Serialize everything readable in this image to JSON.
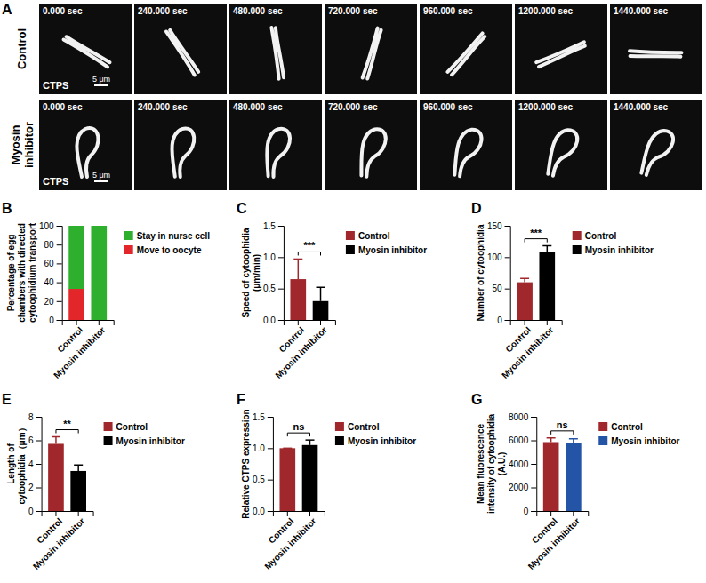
{
  "image_panel": {
    "panel_label": "A",
    "times": [
      "0.000 sec",
      "240.000 sec",
      "480.000 sec",
      "720.000 sec",
      "960.000 sec",
      "1200.000 sec",
      "1440.000 sec"
    ],
    "rows": [
      {
        "label": "Control",
        "stain": "CTPS",
        "scale_bar": "5 μm"
      },
      {
        "label": "Myosin inhibitor",
        "stain": "CTPS",
        "scale_bar": "5 μm"
      }
    ]
  },
  "chart_data": [
    {
      "panel_label": "B",
      "type": "bar",
      "stacked": true,
      "y_label": "Percentage of egg chambers with directed cytoophidium transport",
      "categories": [
        "Control",
        "Myosin inhibitor"
      ],
      "series": [
        {
          "name": "Move to oocyte",
          "color": "#e3262a",
          "values": [
            33,
            0
          ]
        },
        {
          "name": "Stay in nurse cell",
          "color": "#2eb02e",
          "values": [
            67,
            100
          ]
        }
      ],
      "ylim": [
        0,
        100
      ],
      "yticks": [
        0,
        20,
        40,
        60,
        80,
        100
      ],
      "legend": "right"
    },
    {
      "panel_label": "C",
      "type": "bar",
      "y_label": "Speed of cytoophidia (μm/min)",
      "categories": [
        "Control",
        "Myosin inhibitor"
      ],
      "values": [
        0.65,
        0.3
      ],
      "errors": [
        0.32,
        0.22
      ],
      "colors": [
        "#a0282d",
        "#000000"
      ],
      "ylim": [
        0,
        1.5
      ],
      "yticks": [
        {
          "value": 0,
          "label": "0.0"
        },
        {
          "value": 0.5,
          "label": "0.5"
        },
        {
          "value": 1,
          "label": "1.0"
        },
        {
          "value": 1.5,
          "label": "1.5"
        }
      ],
      "annotations": [
        "***"
      ],
      "legend": "right"
    },
    {
      "panel_label": "D",
      "type": "bar",
      "y_label": "Number of cytoophidia",
      "categories": [
        "Control",
        "Myosin inhibitor"
      ],
      "values": [
        60,
        108
      ],
      "errors": [
        6,
        10
      ],
      "colors": [
        "#a0282d",
        "#000000"
      ],
      "ylim": [
        0,
        150
      ],
      "yticks": [
        0,
        50,
        100,
        150
      ],
      "annotations": [
        "***"
      ],
      "legend": "right"
    },
    {
      "panel_label": "E",
      "type": "bar",
      "y_label": "Length of cytoophidia（μm）",
      "categories": [
        "Control",
        "Myosin inhibitor"
      ],
      "values": [
        5.7,
        3.4
      ],
      "errors": [
        0.6,
        0.5
      ],
      "colors": [
        "#a0282d",
        "#000000"
      ],
      "ylim": [
        0,
        8
      ],
      "yticks": [
        0,
        2,
        4,
        6,
        8
      ],
      "annotations": [
        "**"
      ],
      "legend": "right"
    },
    {
      "panel_label": "F",
      "type": "bar",
      "y_label": "Relative CTPS expression",
      "categories": [
        "Control",
        "Myosin inhibitor"
      ],
      "values": [
        1.0,
        1.05
      ],
      "errors": [
        0,
        0.08
      ],
      "colors": [
        "#a0282d",
        "#000000"
      ],
      "ylim": [
        0,
        1.5
      ],
      "yticks": [
        {
          "value": 0,
          "label": "0.0"
        },
        {
          "value": 0.5,
          "label": "0.5"
        },
        {
          "value": 1,
          "label": "1.0"
        },
        {
          "value": 1.5,
          "label": "1.5"
        }
      ],
      "annotations": [
        "ns"
      ],
      "legend": "right"
    },
    {
      "panel_label": "G",
      "type": "bar",
      "y_label": "Mean fluorescence intensity of cytoophidia (A.U.)",
      "categories": [
        "Control",
        "Myosin inhibitor"
      ],
      "values": [
        5850,
        5750
      ],
      "errors": [
        350,
        380
      ],
      "colors": [
        "#a0282d",
        "#2454a6"
      ],
      "ylim": [
        0,
        8000
      ],
      "yticks": [
        0,
        2000,
        4000,
        6000,
        8000
      ],
      "annotations": [
        "ns"
      ],
      "legend": "right"
    }
  ]
}
